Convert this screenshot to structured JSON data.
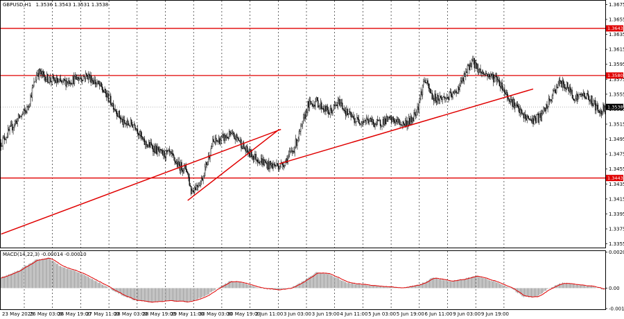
{
  "header": {
    "symbol": "GBPUSD,H1",
    "ohlc": "1.3536 1.3543 1.3531 1.3538",
    "macd_label": "MACD(14,22,3) -0.00014 -0.00010"
  },
  "colors": {
    "bull_candle": "#ffffff",
    "bear_candle": "#000000",
    "level_line": "#e00000",
    "trend_line": "#e00000",
    "current_price_bg": "#000000",
    "level_label_bg": "#e00000",
    "macd_hist": "#a0a0a0",
    "macd_signal": "#e00000",
    "grid": "#000000"
  },
  "chart_data": {
    "type": "candlestick",
    "x_labels": [
      "23 May 2025",
      "26 May 03:00",
      "26 May 19:00",
      "27 May 11:00",
      "28 May 03:00",
      "28 May 19:00",
      "29 May 11:00",
      "30 May 03:00",
      "30 May 19:00",
      "2 Jun 11:00",
      "3 Jun 03:00",
      "3 Jun 19:00",
      "4 Jun 11:00",
      "5 Jun 03:00",
      "5 Jun 19:00",
      "6 Jun 11:00",
      "9 Jun 03:00",
      "9 Jun 19:00"
    ],
    "y_ticks": [
      "1.3675",
      "1.3655",
      "1.3635",
      "1.3615",
      "1.3595",
      "1.3575",
      "1.3555",
      "1.3535",
      "1.3515",
      "1.3495",
      "1.3475",
      "1.3455",
      "1.3435",
      "1.3415",
      "1.3395",
      "1.3375",
      "1.3355"
    ],
    "ylim": [
      1.335,
      1.368
    ],
    "current_price": "1.3538",
    "levels": [
      {
        "value": 1.3643,
        "label": "1.3643"
      },
      {
        "value": 1.358,
        "label": "1.3580"
      },
      {
        "value": 1.3443,
        "label": "1.3443"
      }
    ],
    "trend_lines": [
      {
        "from": {
          "bar": 0,
          "price": 1.3368
        },
        "to": {
          "bar": 324,
          "price": 1.3508
        }
      },
      {
        "from": {
          "bar": 216,
          "price": 1.3413
        },
        "to": {
          "bar": 322,
          "price": 1.3508
        }
      },
      {
        "from": {
          "bar": 322,
          "price": 1.3462
        },
        "to": {
          "bar": 616,
          "price": 1.3562
        }
      }
    ],
    "waypoints": [
      [
        0,
        1.349
      ],
      [
        18,
        1.352
      ],
      [
        30,
        1.3535
      ],
      [
        42,
        1.3585
      ],
      [
        55,
        1.3575
      ],
      [
        70,
        1.357
      ],
      [
        85,
        1.3575
      ],
      [
        100,
        1.358
      ],
      [
        115,
        1.3565
      ],
      [
        130,
        1.354
      ],
      [
        142,
        1.3515
      ],
      [
        155,
        1.3515
      ],
      [
        165,
        1.349
      ],
      [
        175,
        1.3485
      ],
      [
        185,
        1.3475
      ],
      [
        195,
        1.3475
      ],
      [
        205,
        1.346
      ],
      [
        215,
        1.3455
      ],
      [
        220,
        1.3425
      ],
      [
        232,
        1.344
      ],
      [
        245,
        1.349
      ],
      [
        255,
        1.3495
      ],
      [
        265,
        1.35
      ],
      [
        275,
        1.3495
      ],
      [
        283,
        1.348
      ],
      [
        295,
        1.347
      ],
      [
        310,
        1.346
      ],
      [
        325,
        1.346
      ],
      [
        338,
        1.348
      ],
      [
        348,
        1.351
      ],
      [
        355,
        1.354
      ],
      [
        365,
        1.3545
      ],
      [
        380,
        1.353
      ],
      [
        392,
        1.3545
      ],
      [
        400,
        1.353
      ],
      [
        410,
        1.352
      ],
      [
        425,
        1.352
      ],
      [
        435,
        1.3515
      ],
      [
        445,
        1.352
      ],
      [
        455,
        1.352
      ],
      [
        465,
        1.3515
      ],
      [
        475,
        1.352
      ],
      [
        483,
        1.354
      ],
      [
        490,
        1.3575
      ],
      [
        500,
        1.355
      ],
      [
        515,
        1.355
      ],
      [
        525,
        1.3555
      ],
      [
        535,
        1.3575
      ],
      [
        545,
        1.36
      ],
      [
        555,
        1.3585
      ],
      [
        565,
        1.358
      ],
      [
        575,
        1.3575
      ],
      [
        585,
        1.3555
      ],
      [
        595,
        1.354
      ],
      [
        605,
        1.3525
      ],
      [
        615,
        1.352
      ],
      [
        625,
        1.3525
      ],
      [
        635,
        1.3545
      ],
      [
        645,
        1.357
      ],
      [
        655,
        1.3565
      ],
      [
        665,
        1.355
      ],
      [
        675,
        1.3555
      ],
      [
        685,
        1.3545
      ],
      [
        693,
        1.353
      ],
      [
        698,
        1.3538
      ]
    ],
    "macd": {
      "ylim": [
        -0.0012,
        0.0021
      ],
      "y_ticks": [
        "0.00204",
        "0.00",
        "-0.00116"
      ],
      "waypoints": [
        [
          0,
          0.0006
        ],
        [
          20,
          0.001
        ],
        [
          40,
          0.0016
        ],
        [
          55,
          0.0017
        ],
        [
          70,
          0.0012
        ],
        [
          90,
          0.0009
        ],
        [
          110,
          0.0004
        ],
        [
          125,
          0.0
        ],
        [
          140,
          -0.0004
        ],
        [
          155,
          -0.0007
        ],
        [
          175,
          -0.0008
        ],
        [
          195,
          -0.0007
        ],
        [
          215,
          -0.0008
        ],
        [
          235,
          -0.0005
        ],
        [
          250,
          0.0
        ],
        [
          265,
          0.0004
        ],
        [
          280,
          0.0003
        ],
        [
          300,
          0.0
        ],
        [
          320,
          -0.0001
        ],
        [
          335,
          0.0
        ],
        [
          350,
          0.0004
        ],
        [
          365,
          0.0009
        ],
        [
          380,
          0.0008
        ],
        [
          400,
          0.0003
        ],
        [
          420,
          0.0002
        ],
        [
          440,
          0.0001
        ],
        [
          465,
          0.0
        ],
        [
          485,
          0.0002
        ],
        [
          500,
          0.0006
        ],
        [
          520,
          0.0004
        ],
        [
          535,
          0.0005
        ],
        [
          550,
          0.0007
        ],
        [
          570,
          0.0004
        ],
        [
          590,
          0.0
        ],
        [
          605,
          -0.0005
        ],
        [
          620,
          -0.0005
        ],
        [
          635,
          0.0
        ],
        [
          650,
          0.0003
        ],
        [
          665,
          0.0002
        ],
        [
          685,
          0.0001
        ],
        [
          698,
          -0.0001
        ]
      ]
    }
  }
}
